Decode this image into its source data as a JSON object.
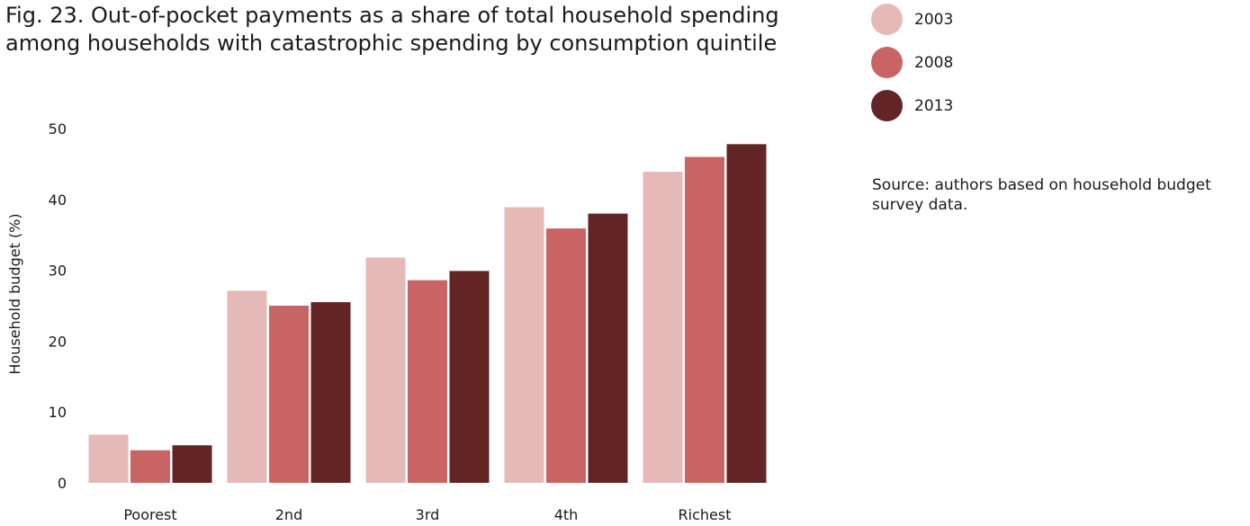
{
  "title_lines": [
    "Fig. 23. Out-of-pocket payments as a share of total household spending",
    "among households with catastrophic spending by consumption quintile"
  ],
  "source_text": "Source: authors based on household budget survey data.",
  "chart_data": {
    "type": "bar",
    "title": "Fig. 23. Out-of-pocket payments as a share of total household spending among households with catastrophic spending by consumption quintile",
    "categories": [
      "Poorest",
      "2nd",
      "3rd",
      "4th",
      "Richest"
    ],
    "series": [
      {
        "name": "2003",
        "color": "#e6b9b9",
        "values": [
          6.8,
          27.1,
          31.8,
          38.9,
          43.9
        ]
      },
      {
        "name": "2008",
        "color": "#c86464",
        "values": [
          4.6,
          25.0,
          28.6,
          35.9,
          46.0
        ]
      },
      {
        "name": "2013",
        "color": "#632426",
        "values": [
          5.3,
          25.5,
          29.9,
          38.0,
          47.8
        ]
      }
    ],
    "xlabel": "",
    "ylabel": "Household budget (%)",
    "ylim": [
      0,
      50
    ],
    "yticks": [
      "0",
      "10",
      "20",
      "30",
      "40",
      "50"
    ],
    "grid": false,
    "legend_position": "top-right"
  }
}
